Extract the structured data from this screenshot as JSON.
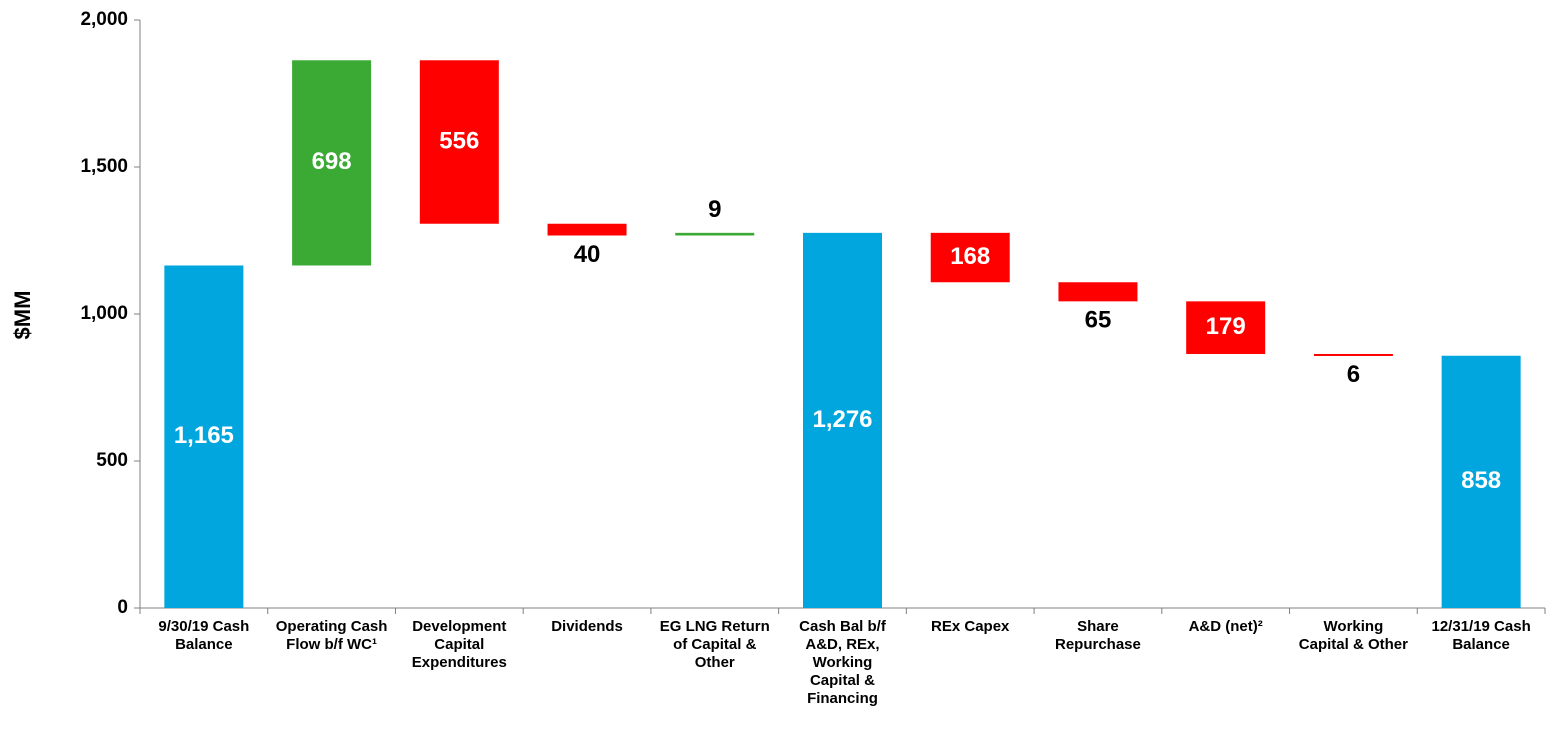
{
  "chart_data": {
    "type": "waterfall",
    "y_label": "$MM",
    "categories": [
      "9/30/19 Cash Balance",
      "Operating Cash Flow b/f WC¹",
      "Development Capital Expenditures",
      "Dividends",
      "EG LNG Return of Capital & Other",
      "Cash Bal b/f A&D, REx, Working Capital & Financing",
      "REx Capex",
      "Share Repurchase",
      "A&D (net)²",
      "Working Capital & Other",
      "12/31/19 Cash Balance"
    ],
    "measure": [
      "absolute",
      "relative",
      "relative",
      "relative",
      "relative",
      "absolute",
      "relative",
      "relative",
      "relative",
      "relative",
      "absolute"
    ],
    "values": [
      1165,
      698,
      -556,
      -40,
      9,
      1276,
      -168,
      -65,
      -179,
      -6,
      858
    ],
    "value_labels": [
      "1,165",
      "698",
      "556",
      "40",
      "9",
      "1,276",
      "168",
      "65",
      "179",
      "6",
      "858"
    ],
    "colors": [
      "#00a6dd",
      "#3aaa35",
      "#ff0000",
      "#ff0000",
      "#3aaa35",
      "#00a6dd",
      "#ff0000",
      "#ff0000",
      "#ff0000",
      "#ff0000",
      "#00a6dd"
    ],
    "ylim": [
      0,
      2000
    ],
    "yticks": [
      0,
      500,
      {
        "value": 1000,
        "label": "1,000"
      },
      {
        "value": 1500,
        "label": "1,500"
      },
      {
        "value": 2000,
        "label": "2,000"
      }
    ]
  }
}
